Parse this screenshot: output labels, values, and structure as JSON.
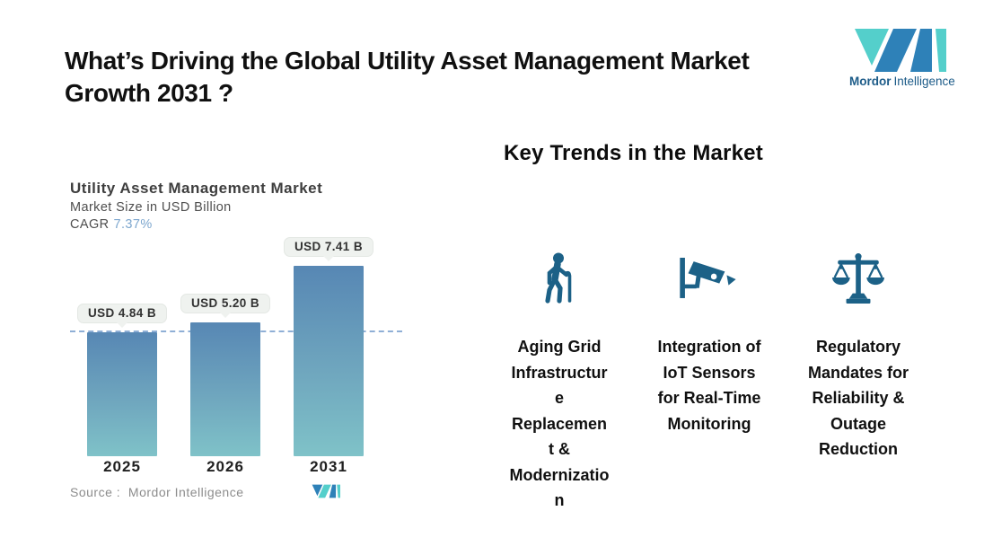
{
  "page": {
    "title": "What’s Driving the Global Utility Asset Management Market\nGrowth 2031 ?"
  },
  "brand": {
    "name_bold": "Mordor",
    "name_light": "Intelligence",
    "colors": {
      "teal": "#54cfcb",
      "blue": "#2e81b8",
      "text": "#1c5b88"
    }
  },
  "chart": {
    "title": "Utility Asset Management Market",
    "subtitle": "Market Size in USD Billion",
    "cagr_label": "CAGR",
    "cagr_value": "7.37%",
    "source_label": "Source :  Mordor Intelligence"
  },
  "chart_data": {
    "type": "bar",
    "title": "Utility Asset Management Market",
    "subtitle": "Market Size in USD Billion",
    "cagr": "7.37%",
    "categories": [
      "2025",
      "2026",
      "2031"
    ],
    "values": [
      4.84,
      5.2,
      7.41
    ],
    "value_labels": [
      "USD 4.84 B",
      "USD 5.20 B",
      "USD 7.41 B"
    ],
    "xlabel": "",
    "ylabel": "Market Size in USD Billion",
    "ylim": [
      0,
      8
    ],
    "grid": false,
    "reference_line": 4.84,
    "bar_color_top": "#5787b4",
    "bar_color_bottom": "#7fc2c8",
    "source": "Source :  Mordor Intelligence"
  },
  "trends": {
    "heading": "Key Trends in the Market",
    "items": [
      {
        "icon": "elderly-person-cane-icon",
        "label": "Aging Grid\nInfrastructur\ne\nReplacemen\nt &\nModernizatio\nn"
      },
      {
        "icon": "cctv-camera-icon",
        "label": "Integration of\nIoT Sensors\nfor Real-Time\nMonitoring"
      },
      {
        "icon": "justice-scales-icon",
        "label": "Regulatory\nMandates for\nReliability &\nOutage\nReduction"
      }
    ]
  },
  "colors": {
    "icon": "#1c6187",
    "dashed_reference": "#8fafd6",
    "callout_bg": "#eff2ef"
  }
}
